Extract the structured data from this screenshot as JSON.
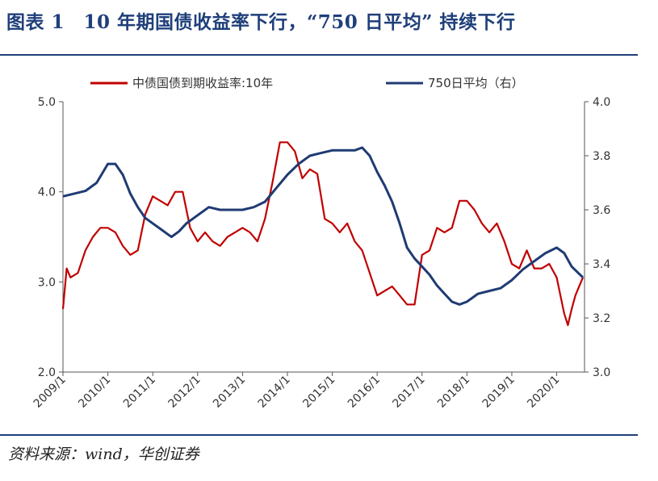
{
  "header": {
    "title": "图表 1　10 年期国债收益率下行，“750 日平均” 持续下行"
  },
  "footer": {
    "source": "资料来源：wind，华创证券"
  },
  "colors": {
    "line_10y": "#c00000",
    "line_ma750": "#1f3b73",
    "rule": "#1f3f7a"
  },
  "chart_data": {
    "type": "line",
    "title": "",
    "xlabel": "",
    "ylabel": "",
    "x_tick_labels": [
      "2009/1",
      "2010/1",
      "2011/1",
      "2012/1",
      "2013/1",
      "2014/1",
      "2015/1",
      "2016/1",
      "2017/1",
      "2018/1",
      "2019/1",
      "2020/1"
    ],
    "y_left": {
      "ylim": [
        2.0,
        5.0
      ],
      "ticks": [
        "2.0",
        "3.0",
        "4.0",
        "5.0"
      ]
    },
    "y_right": {
      "ylim": [
        3.0,
        4.0
      ],
      "ticks": [
        "3.0",
        "3.2",
        "3.4",
        "3.6",
        "3.8",
        "4.0"
      ]
    },
    "grid": false,
    "legend_position": "top",
    "series": [
      {
        "name": "中债国债到期收益率:10年",
        "axis": "left",
        "points": [
          [
            "2009-01",
            2.7
          ],
          [
            "2009-02",
            3.15
          ],
          [
            "2009-03",
            3.05
          ],
          [
            "2009-05",
            3.1
          ],
          [
            "2009-07",
            3.35
          ],
          [
            "2009-09",
            3.5
          ],
          [
            "2009-11",
            3.6
          ],
          [
            "2010-01",
            3.6
          ],
          [
            "2010-03",
            3.55
          ],
          [
            "2010-05",
            3.4
          ],
          [
            "2010-07",
            3.3
          ],
          [
            "2010-09",
            3.35
          ],
          [
            "2010-11",
            3.75
          ],
          [
            "2011-01",
            3.95
          ],
          [
            "2011-03",
            3.9
          ],
          [
            "2011-05",
            3.85
          ],
          [
            "2011-07",
            4.0
          ],
          [
            "2011-09",
            4.0
          ],
          [
            "2011-11",
            3.6
          ],
          [
            "2012-01",
            3.45
          ],
          [
            "2012-03",
            3.55
          ],
          [
            "2012-05",
            3.45
          ],
          [
            "2012-07",
            3.4
          ],
          [
            "2012-09",
            3.5
          ],
          [
            "2012-11",
            3.55
          ],
          [
            "2013-01",
            3.6
          ],
          [
            "2013-03",
            3.55
          ],
          [
            "2013-05",
            3.45
          ],
          [
            "2013-07",
            3.7
          ],
          [
            "2013-09",
            4.1
          ],
          [
            "2013-11",
            4.55
          ],
          [
            "2014-01",
            4.55
          ],
          [
            "2014-03",
            4.45
          ],
          [
            "2014-05",
            4.15
          ],
          [
            "2014-07",
            4.25
          ],
          [
            "2014-09",
            4.2
          ],
          [
            "2014-11",
            3.7
          ],
          [
            "2015-01",
            3.65
          ],
          [
            "2015-03",
            3.55
          ],
          [
            "2015-05",
            3.65
          ],
          [
            "2015-07",
            3.45
          ],
          [
            "2015-09",
            3.35
          ],
          [
            "2015-11",
            3.1
          ],
          [
            "2016-01",
            2.85
          ],
          [
            "2016-03",
            2.9
          ],
          [
            "2016-05",
            2.95
          ],
          [
            "2016-07",
            2.85
          ],
          [
            "2016-09",
            2.75
          ],
          [
            "2016-11",
            2.75
          ],
          [
            "2017-01",
            3.3
          ],
          [
            "2017-03",
            3.35
          ],
          [
            "2017-05",
            3.6
          ],
          [
            "2017-07",
            3.55
          ],
          [
            "2017-09",
            3.6
          ],
          [
            "2017-11",
            3.9
          ],
          [
            "2018-01",
            3.9
          ],
          [
            "2018-03",
            3.8
          ],
          [
            "2018-05",
            3.65
          ],
          [
            "2018-07",
            3.55
          ],
          [
            "2018-09",
            3.65
          ],
          [
            "2018-11",
            3.45
          ],
          [
            "2019-01",
            3.2
          ],
          [
            "2019-03",
            3.15
          ],
          [
            "2019-05",
            3.35
          ],
          [
            "2019-07",
            3.15
          ],
          [
            "2019-09",
            3.15
          ],
          [
            "2019-11",
            3.2
          ],
          [
            "2020-01",
            3.05
          ],
          [
            "2020-03",
            2.65
          ],
          [
            "2020-04",
            2.52
          ],
          [
            "2020-05",
            2.7
          ],
          [
            "2020-06",
            2.85
          ],
          [
            "2020-07",
            2.95
          ],
          [
            "2020-08",
            3.05
          ]
        ]
      },
      {
        "name": "750日平均（右）",
        "axis": "right",
        "points": [
          [
            "2009-01",
            3.65
          ],
          [
            "2009-04",
            3.66
          ],
          [
            "2009-07",
            3.67
          ],
          [
            "2009-10",
            3.7
          ],
          [
            "2010-01",
            3.77
          ],
          [
            "2010-03",
            3.77
          ],
          [
            "2010-05",
            3.73
          ],
          [
            "2010-07",
            3.66
          ],
          [
            "2010-09",
            3.61
          ],
          [
            "2010-11",
            3.57
          ],
          [
            "2011-01",
            3.55
          ],
          [
            "2011-03",
            3.53
          ],
          [
            "2011-05",
            3.51
          ],
          [
            "2011-06",
            3.5
          ],
          [
            "2011-08",
            3.52
          ],
          [
            "2011-10",
            3.55
          ],
          [
            "2012-01",
            3.58
          ],
          [
            "2012-04",
            3.61
          ],
          [
            "2012-07",
            3.6
          ],
          [
            "2012-10",
            3.6
          ],
          [
            "2013-01",
            3.6
          ],
          [
            "2013-04",
            3.61
          ],
          [
            "2013-07",
            3.63
          ],
          [
            "2013-10",
            3.68
          ],
          [
            "2014-01",
            3.73
          ],
          [
            "2014-04",
            3.77
          ],
          [
            "2014-07",
            3.8
          ],
          [
            "2014-10",
            3.81
          ],
          [
            "2015-01",
            3.82
          ],
          [
            "2015-04",
            3.82
          ],
          [
            "2015-07",
            3.82
          ],
          [
            "2015-09",
            3.83
          ],
          [
            "2015-11",
            3.8
          ],
          [
            "2016-01",
            3.74
          ],
          [
            "2016-03",
            3.69
          ],
          [
            "2016-05",
            3.63
          ],
          [
            "2016-07",
            3.55
          ],
          [
            "2016-09",
            3.46
          ],
          [
            "2016-11",
            3.42
          ],
          [
            "2017-01",
            3.39
          ],
          [
            "2017-03",
            3.36
          ],
          [
            "2017-05",
            3.32
          ],
          [
            "2017-07",
            3.29
          ],
          [
            "2017-09",
            3.26
          ],
          [
            "2017-11",
            3.25
          ],
          [
            "2018-01",
            3.26
          ],
          [
            "2018-04",
            3.29
          ],
          [
            "2018-07",
            3.3
          ],
          [
            "2018-10",
            3.31
          ],
          [
            "2019-01",
            3.34
          ],
          [
            "2019-04",
            3.38
          ],
          [
            "2019-07",
            3.41
          ],
          [
            "2019-10",
            3.44
          ],
          [
            "2020-01",
            3.46
          ],
          [
            "2020-03",
            3.44
          ],
          [
            "2020-05",
            3.39
          ],
          [
            "2020-08",
            3.35
          ]
        ]
      }
    ]
  }
}
